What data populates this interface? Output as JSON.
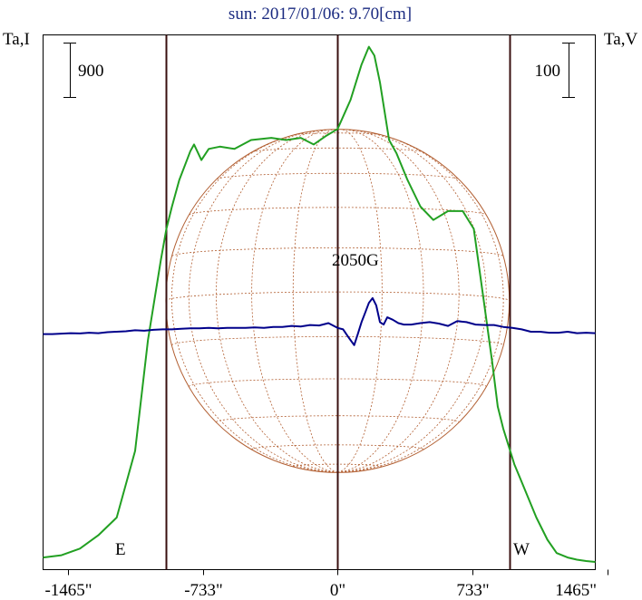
{
  "chart_data": {
    "type": "line",
    "title": "sun: 2017/01/06: 9.70[cm]",
    "left_axis_label": "Ta,I",
    "right_axis_label": "Ta,V",
    "left_scale_bar": "900",
    "right_scale_bar": "100",
    "annotation": "2050G",
    "limb_labels": [
      "E",
      "W"
    ],
    "x_ticks": [
      {
        "value": -1465,
        "label": "-1465\""
      },
      {
        "value": -733,
        "label": "-733\""
      },
      {
        "value": 0,
        "label": "0\""
      },
      {
        "value": 733,
        "label": "733\""
      },
      {
        "value": 1465,
        "label": "1465\""
      }
    ],
    "xlim": [
      -1600,
      1400
    ],
    "limb_positions": [
      -933,
      933
    ],
    "grid": false,
    "colors": {
      "intensity": "#22a022",
      "polarization": "#00008b",
      "disk_grid": "#b25f32",
      "vertical_lines": "#3a1010",
      "title": "#1a2a80",
      "frame": "#000000"
    },
    "series": [
      {
        "name": "I",
        "x": [
          -1600,
          -1500,
          -1400,
          -1300,
          -1200,
          -1100,
          -1030,
          -960,
          -930,
          -900,
          -860,
          -800,
          -780,
          -740,
          -700,
          -640,
          -560,
          -470,
          -360,
          -280,
          -200,
          -130,
          -60,
          0,
          70,
          130,
          170,
          200,
          230,
          280,
          320,
          380,
          450,
          520,
          600,
          680,
          740,
          790,
          840,
          870,
          900,
          930,
          960,
          990,
          1030,
          1080,
          1140,
          1190,
          1250,
          1300,
          1350,
          1400
        ],
        "values": [
          0.01,
          0.015,
          0.03,
          0.06,
          0.1,
          0.25,
          0.5,
          0.68,
          0.75,
          0.8,
          0.86,
          0.925,
          0.94,
          0.905,
          0.93,
          0.935,
          0.93,
          0.95,
          0.955,
          0.95,
          0.955,
          0.94,
          0.96,
          0.975,
          1.04,
          1.12,
          1.16,
          1.14,
          1.08,
          0.95,
          0.92,
          0.86,
          0.8,
          0.77,
          0.79,
          0.79,
          0.75,
          0.6,
          0.45,
          0.35,
          0.3,
          0.26,
          0.22,
          0.19,
          0.15,
          0.1,
          0.05,
          0.02,
          0.01,
          0.005,
          0.002,
          0.0
        ]
      },
      {
        "name": "V",
        "x": [
          -1600,
          -1550,
          -1500,
          -1450,
          -1400,
          -1350,
          -1300,
          -1250,
          -1200,
          -1150,
          -1100,
          -1050,
          -1000,
          -950,
          -900,
          -850,
          -800,
          -750,
          -700,
          -650,
          -600,
          -550,
          -500,
          -450,
          -400,
          -350,
          -300,
          -250,
          -200,
          -150,
          -100,
          -50,
          0,
          30,
          60,
          90,
          110,
          130,
          150,
          170,
          190,
          210,
          230,
          250,
          270,
          300,
          330,
          360,
          400,
          450,
          500,
          550,
          600,
          650,
          700,
          750,
          800,
          850,
          900,
          950,
          1000,
          1050,
          1100,
          1150,
          1200,
          1250,
          1300,
          1350,
          1400
        ],
        "values": [
          -0.05,
          -0.05,
          -0.04,
          -0.03,
          -0.035,
          -0.02,
          -0.03,
          -0.01,
          0.0,
          0.01,
          0.03,
          0.02,
          0.04,
          0.05,
          0.05,
          0.06,
          0.07,
          0.07,
          0.08,
          0.07,
          0.08,
          0.08,
          0.08,
          0.09,
          0.08,
          0.1,
          0.1,
          0.12,
          0.11,
          0.14,
          0.13,
          0.18,
          0.08,
          0.05,
          -0.12,
          -0.28,
          -0.05,
          0.2,
          0.4,
          0.6,
          0.7,
          0.55,
          0.2,
          0.15,
          0.3,
          0.25,
          0.18,
          0.15,
          0.15,
          0.18,
          0.2,
          0.17,
          0.12,
          0.22,
          0.2,
          0.15,
          0.14,
          0.14,
          0.1,
          0.08,
          0.05,
          0.0,
          0.0,
          -0.02,
          -0.02,
          0.0,
          -0.03,
          -0.02,
          -0.03
        ]
      }
    ]
  }
}
